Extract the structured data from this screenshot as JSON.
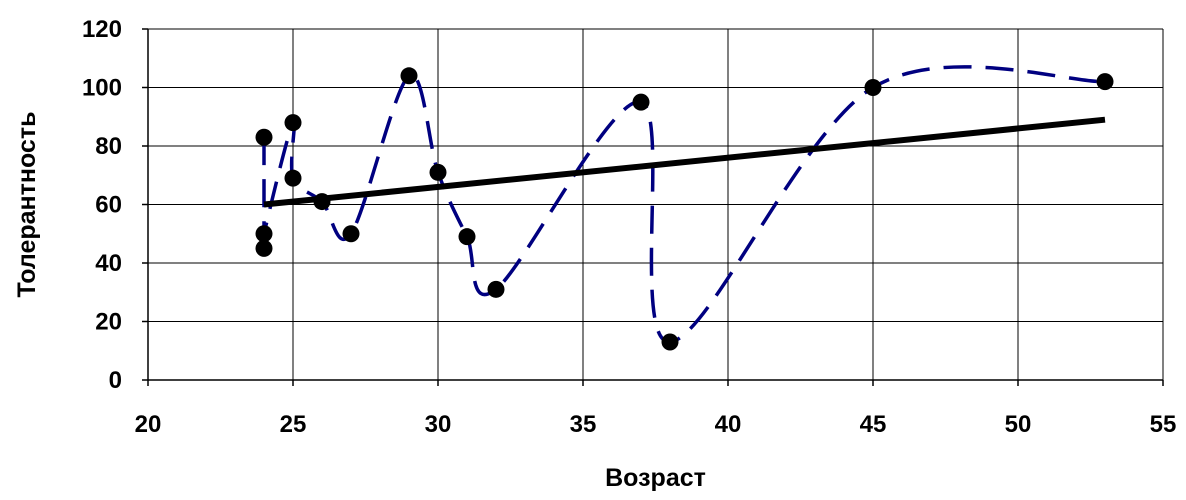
{
  "chart_data": {
    "type": "scatter",
    "title": "",
    "xlabel": "Возраст",
    "ylabel": "Толерантность",
    "xlim": [
      20,
      55
    ],
    "ylim": [
      0,
      120
    ],
    "x_ticks": [
      20,
      25,
      30,
      35,
      40,
      45,
      50,
      55
    ],
    "y_ticks": [
      0,
      20,
      40,
      60,
      80,
      100,
      120
    ],
    "x_tick_labels": [
      "20",
      "25",
      "30",
      "35",
      "40",
      "45",
      "50",
      "55"
    ],
    "y_tick_labels": [
      "0",
      "20",
      "40",
      "60",
      "80",
      "100",
      "120"
    ],
    "grid": true,
    "series": [
      {
        "style": "markers with dashed smoothed line",
        "x": [
          24,
          24,
          24,
          25,
          25,
          26,
          27,
          29,
          30,
          31,
          32,
          37,
          38,
          45,
          53
        ],
        "y": [
          83,
          45,
          50,
          88,
          69,
          61,
          50,
          104,
          71,
          49,
          31,
          95,
          13,
          100,
          102
        ]
      },
      {
        "style": "solid linear trend line",
        "x": [
          24,
          53
        ],
        "y": [
          60,
          89
        ]
      }
    ],
    "colors": {
      "markers": "#000000",
      "dashed_line": "#000080",
      "trend_line": "#000000",
      "grid": "#000000"
    }
  }
}
